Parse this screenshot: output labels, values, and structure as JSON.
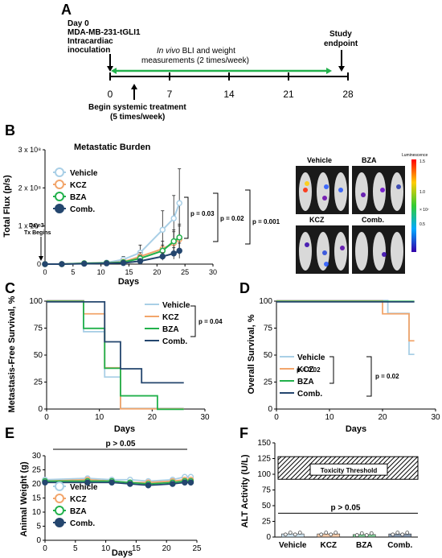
{
  "panel_letters": [
    "A",
    "B",
    "C",
    "D",
    "E",
    "F"
  ],
  "timeline": {
    "ticks": [
      0,
      7,
      14,
      21,
      28
    ],
    "day0_lines": [
      "Day 0",
      "MDA-MB-231-tGLI1",
      "Intracardiac",
      "inoculation"
    ],
    "measure_line1_italic": "In vivo",
    "measure_line1_rest": " BLI and weight",
    "measure_line2": "measurements (2 times/week)",
    "endpoint_lines": [
      "Study",
      "endpoint"
    ],
    "treatment_lines": [
      "Begin systemic treatment",
      "(5 times/week)"
    ]
  },
  "series_names": [
    "Vehicle",
    "KCZ",
    "BZA",
    "Comb."
  ],
  "colors": {
    "Vehicle": "#a9cfe6",
    "KCZ": "#f2a56b",
    "BZA": "#22b14c",
    "Comb.": "#24466e"
  },
  "images": {
    "legend_title": "Luminescence",
    "scale_top": "1.5",
    "scale_mid": "1.0",
    "scale_mid2": "0.5",
    "scale_exp": "× 10⁷",
    "groups": [
      "Vehicle",
      "BZA",
      "KCZ",
      "Comb."
    ]
  },
  "chart_data": [
    {
      "panel": "B",
      "type": "line",
      "title": "Metastatic  Burden",
      "xlabel": "Days",
      "ylabel": "Total Flux (p/s)",
      "xlim": [
        0,
        30
      ],
      "ylim": [
        0,
        300000000.0
      ],
      "xticks": [
        "0",
        "5",
        "10",
        "15",
        "20",
        "25",
        "30"
      ],
      "yticks": [
        "0",
        "1 x 10⁸",
        "2 x 10⁸",
        "3 x 10⁸"
      ],
      "annotation": [
        "Day 3",
        "Tx Begins"
      ],
      "pvalues": [
        "p = 0.03",
        "p = 0.02",
        "p = 0.001"
      ],
      "x": [
        0,
        3,
        7,
        11,
        14,
        17,
        21,
        23,
        24
      ],
      "series": [
        {
          "name": "Vehicle",
          "values": [
            0,
            0,
            2000000.0,
            4000000.0,
            12000000.0,
            30000000.0,
            90000000.0,
            120000000.0,
            160000000.0
          ],
          "err": [
            0,
            0,
            1000000.0,
            3000000.0,
            8000000.0,
            20000000.0,
            50000000.0,
            60000000.0,
            90000000.0
          ]
        },
        {
          "name": "KCZ",
          "values": [
            0,
            0,
            2000000.0,
            3000000.0,
            6000000.0,
            20000000.0,
            40000000.0,
            55000000.0,
            65000000.0
          ],
          "err": [
            0,
            0,
            1000000.0,
            2000000.0,
            5000000.0,
            10000000.0,
            20000000.0,
            30000000.0,
            40000000.0
          ]
        },
        {
          "name": "BZA",
          "values": [
            0,
            0,
            2000000.0,
            3000000.0,
            5000000.0,
            15000000.0,
            35000000.0,
            60000000.0,
            70000000.0
          ],
          "err": [
            0,
            0,
            1000000.0,
            2000000.0,
            4000000.0,
            8000000.0,
            15000000.0,
            30000000.0,
            30000000.0
          ]
        },
        {
          "name": "Comb.",
          "values": [
            0,
            0,
            1000000.0,
            2000000.0,
            3000000.0,
            8000000.0,
            20000000.0,
            28000000.0,
            35000000.0
          ],
          "err": [
            0,
            0,
            1000000.0,
            1000000.0,
            2000000.0,
            5000000.0,
            10000000.0,
            15000000.0,
            20000000.0
          ]
        }
      ]
    },
    {
      "panel": "C",
      "type": "line",
      "title": "",
      "xlabel": "Days",
      "ylabel": "Metastasis-Free Survival, %",
      "xlim": [
        0,
        30
      ],
      "ylim": [
        0,
        100
      ],
      "xticks": [
        "0",
        "10",
        "20",
        "30"
      ],
      "yticks": [
        "0",
        "25",
        "50",
        "75",
        "100"
      ],
      "pvalues": [
        "p = 0.04"
      ],
      "series": [
        {
          "name": "Vehicle",
          "steps": [
            [
              0,
              100
            ],
            [
              7,
              100
            ],
            [
              7,
              71
            ],
            [
              11,
              71
            ],
            [
              11,
              29
            ],
            [
              14,
              29
            ],
            [
              14,
              0
            ],
            [
              26,
              0
            ]
          ]
        },
        {
          "name": "KCZ",
          "steps": [
            [
              0,
              100
            ],
            [
              7,
              100
            ],
            [
              7,
              88
            ],
            [
              11,
              88
            ],
            [
              11,
              38
            ],
            [
              14,
              38
            ],
            [
              14,
              0
            ],
            [
              26,
              0
            ]
          ]
        },
        {
          "name": "BZA",
          "steps": [
            [
              0,
              100
            ],
            [
              7,
              100
            ],
            [
              7,
              75
            ],
            [
              11,
              75
            ],
            [
              11,
              38
            ],
            [
              14,
              38
            ],
            [
              14,
              12.5
            ],
            [
              21,
              12.5
            ],
            [
              21,
              0
            ],
            [
              26,
              0
            ]
          ]
        },
        {
          "name": "Comb.",
          "steps": [
            [
              0,
              100
            ],
            [
              11,
              100
            ],
            [
              11,
              63
            ],
            [
              14,
              63
            ],
            [
              14,
              38
            ],
            [
              18,
              38
            ],
            [
              18,
              25
            ],
            [
              26,
              25
            ]
          ]
        }
      ]
    },
    {
      "panel": "D",
      "type": "line",
      "title": "",
      "xlabel": "Days",
      "ylabel": "Overall Survival, %",
      "xlim": [
        0,
        30
      ],
      "ylim": [
        0,
        100
      ],
      "xticks": [
        "0",
        "10",
        "20",
        "30"
      ],
      "yticks": [
        "0",
        "25",
        "50",
        "75",
        "100"
      ],
      "pvalues": [
        "p = 0.02",
        "p = 0.02"
      ],
      "series": [
        {
          "name": "Vehicle",
          "steps": [
            [
              0,
              100
            ],
            [
              21,
              100
            ],
            [
              21,
              88
            ],
            [
              25,
              88
            ],
            [
              25,
              50
            ],
            [
              26,
              50
            ]
          ]
        },
        {
          "name": "KCZ",
          "steps": [
            [
              0,
              100
            ],
            [
              20,
              100
            ],
            [
              20,
              88
            ],
            [
              25,
              88
            ],
            [
              25,
              63
            ],
            [
              26,
              63
            ]
          ]
        },
        {
          "name": "BZA",
          "steps": [
            [
              0,
              100
            ],
            [
              26,
              100
            ]
          ]
        },
        {
          "name": "Comb.",
          "steps": [
            [
              0,
              100
            ],
            [
              26,
              100
            ]
          ]
        }
      ]
    },
    {
      "panel": "E",
      "type": "line",
      "title": "",
      "xlabel": "Days",
      "ylabel": "Animal Weight (g)",
      "xlim": [
        0,
        25
      ],
      "ylim": [
        0,
        30
      ],
      "xticks": [
        "0",
        "5",
        "10",
        "15",
        "20",
        "25"
      ],
      "yticks": [
        "0",
        "5",
        "10",
        "15",
        "20",
        "25",
        "30"
      ],
      "pvalues": [
        "p > 0.05"
      ],
      "x": [
        0,
        7,
        11,
        14,
        17,
        21,
        23,
        24
      ],
      "series": [
        {
          "name": "Vehicle",
          "values": [
            21.5,
            22,
            21.5,
            21.5,
            21,
            21.5,
            22.5,
            22.5
          ]
        },
        {
          "name": "KCZ",
          "values": [
            21,
            21.5,
            21,
            20.5,
            20.5,
            21,
            21.5,
            21.5
          ]
        },
        {
          "name": "BZA",
          "values": [
            21,
            21,
            21,
            20.5,
            20,
            20.5,
            21,
            21
          ]
        },
        {
          "name": "Comb.",
          "values": [
            20.5,
            20.5,
            20.5,
            20,
            19.5,
            20,
            20.5,
            20.5
          ]
        }
      ]
    },
    {
      "panel": "F",
      "type": "bar",
      "title": "",
      "xlabel": "",
      "ylabel": "ALT Activity (U/L)",
      "ylim": [
        0,
        150
      ],
      "yticks": [
        "0",
        "25",
        "50",
        "75",
        "100",
        "125",
        "150"
      ],
      "categories": [
        "Vehicle",
        "KCZ",
        "BZA",
        "Comb."
      ],
      "values": [
        5,
        5,
        4,
        5
      ],
      "threshold_label": "Toxicity Threshold",
      "threshold_range": [
        92,
        128
      ],
      "pvalues": [
        "p > 0.05"
      ]
    }
  ]
}
